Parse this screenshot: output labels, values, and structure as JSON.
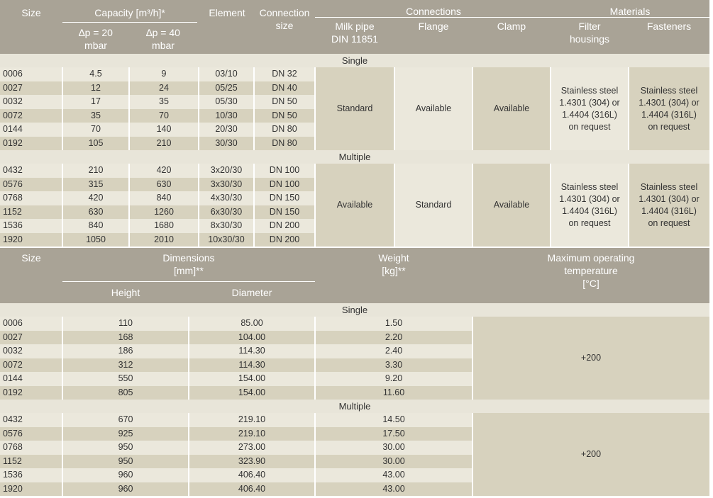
{
  "table1": {
    "headers": {
      "size": "Size",
      "capacity": "Capacity [m³/h]*",
      "dp20": "∆p = 20\nmbar",
      "dp40": "∆p = 40\nmbar",
      "element": "Element",
      "connection": "Connection\nsize",
      "connections": "Connections",
      "milk_pipe": "Milk pipe\nDIN 11851",
      "flange": "Flange",
      "clamp": "Clamp",
      "materials": "Materials",
      "filter_housings": "Filter\nhousings",
      "fasteners": "Fasteners"
    },
    "groups": [
      {
        "label": "Single",
        "rows": [
          [
            "0006",
            "4.5",
            "9",
            "03/10",
            "DN 32"
          ],
          [
            "0027",
            "12",
            "24",
            "05/25",
            "DN 40"
          ],
          [
            "0032",
            "17",
            "35",
            "05/30",
            "DN 50"
          ],
          [
            "0072",
            "35",
            "70",
            "10/30",
            "DN 50"
          ],
          [
            "0144",
            "70",
            "140",
            "20/30",
            "DN 80"
          ],
          [
            "0192",
            "105",
            "210",
            "30/30",
            "DN 80"
          ]
        ],
        "milk_pipe": "Standard",
        "flange": "Available",
        "clamp": "Available",
        "filter_housings": "Stainless steel\n1.4301 (304) or\n1.4404 (316L)\non request",
        "fasteners": "Stainless steel\n1.4301 (304) or\n1.4404 (316L)\non request"
      },
      {
        "label": "Multiple",
        "rows": [
          [
            "0432",
            "210",
            "420",
            "3x20/30",
            "DN 100"
          ],
          [
            "0576",
            "315",
            "630",
            "3x30/30",
            "DN 100"
          ],
          [
            "0768",
            "420",
            "840",
            "4x30/30",
            "DN 150"
          ],
          [
            "1152",
            "630",
            "1260",
            "6x30/30",
            "DN 150"
          ],
          [
            "1536",
            "840",
            "1680",
            "8x30/30",
            "DN 200"
          ],
          [
            "1920",
            "1050",
            "2010",
            "10x30/30",
            "DN 200"
          ]
        ],
        "milk_pipe": "Available",
        "flange": "Standard",
        "clamp": "Available",
        "filter_housings": "Stainless steel\n1.4301 (304) or\n1.4404 (316L)\non request",
        "fasteners": "Stainless steel\n1.4301 (304) or\n1.4404 (316L)\non request"
      }
    ]
  },
  "table2": {
    "headers": {
      "size": "Size",
      "dimensions": "Dimensions\n[mm]**",
      "height": "Height",
      "diameter": "Diameter",
      "weight": "Weight\n[kg]**",
      "max_temp": "Maximum operating\ntemperature\n[°C]"
    },
    "groups": [
      {
        "label": "Single",
        "rows": [
          [
            "0006",
            "110",
            "85.00",
            "1.50"
          ],
          [
            "0027",
            "168",
            "104.00",
            "2.20"
          ],
          [
            "0032",
            "186",
            "114.30",
            "2.40"
          ],
          [
            "0072",
            "312",
            "114.30",
            "3.30"
          ],
          [
            "0144",
            "550",
            "154.00",
            "9.20"
          ],
          [
            "0192",
            "805",
            "154.00",
            "11.60"
          ]
        ],
        "temp": "+200"
      },
      {
        "label": "Multiple",
        "rows": [
          [
            "0432",
            "670",
            "219.10",
            "14.50"
          ],
          [
            "0576",
            "925",
            "219.10",
            "17.50"
          ],
          [
            "0768",
            "950",
            "273.00",
            "30.00"
          ],
          [
            "1152",
            "950",
            "323.90",
            "30.00"
          ],
          [
            "1536",
            "960",
            "406.40",
            "43.00"
          ],
          [
            "1920",
            "960",
            "406.40",
            "43.00"
          ]
        ],
        "temp": "+200"
      }
    ]
  },
  "colors": {
    "header": "#a9a396",
    "row_light": "#ebe8dc",
    "row_dark": "#d7d2be",
    "group_label": "#e8e5d9"
  }
}
